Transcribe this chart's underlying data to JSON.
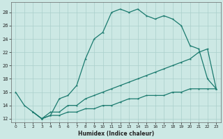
{
  "xlabel": "Humidex (Indice chaleur)",
  "bg_color": "#cce8e4",
  "line_color": "#1a7a6e",
  "grid_color": "#aacfcb",
  "xlim": [
    -0.5,
    23.5
  ],
  "ylim": [
    11.5,
    29.5
  ],
  "xticks": [
    0,
    1,
    2,
    3,
    4,
    5,
    6,
    7,
    8,
    9,
    10,
    11,
    12,
    13,
    14,
    15,
    16,
    17,
    18,
    19,
    20,
    21,
    22,
    23
  ],
  "yticks": [
    12,
    14,
    16,
    18,
    20,
    22,
    24,
    26,
    28
  ],
  "line1_x": [
    0,
    1,
    2,
    3,
    4,
    5,
    6,
    7,
    8,
    9,
    10,
    11,
    12,
    13,
    14,
    15,
    16,
    17,
    18,
    19,
    20,
    21,
    22,
    23
  ],
  "line1_y": [
    16,
    14,
    13,
    12,
    12.5,
    15,
    15.5,
    17,
    21,
    24,
    25,
    28,
    28.5,
    28,
    28.5,
    27.5,
    27,
    27.5,
    27,
    26,
    23,
    22.5,
    18,
    16.5
  ],
  "line2_x": [
    2,
    3,
    4,
    5,
    6,
    7,
    8,
    9,
    10,
    11,
    12,
    13,
    14,
    15,
    16,
    17,
    18,
    19,
    20,
    21,
    22,
    23
  ],
  "line2_y": [
    13,
    12,
    13,
    13,
    14,
    14,
    15,
    15.5,
    16,
    16.5,
    17,
    17.5,
    18,
    18.5,
    19,
    19.5,
    20,
    20.5,
    21,
    22,
    22.5,
    16.5
  ],
  "line3_x": [
    2,
    3,
    4,
    5,
    6,
    7,
    8,
    9,
    10,
    11,
    12,
    13,
    14,
    15,
    16,
    17,
    18,
    19,
    20,
    21,
    22,
    23
  ],
  "line3_y": [
    13,
    12,
    12.5,
    12.5,
    13,
    13,
    13.5,
    13.5,
    14,
    14,
    14.5,
    15,
    15,
    15.5,
    15.5,
    15.5,
    16,
    16,
    16.5,
    16.5,
    16.5,
    16.5
  ]
}
